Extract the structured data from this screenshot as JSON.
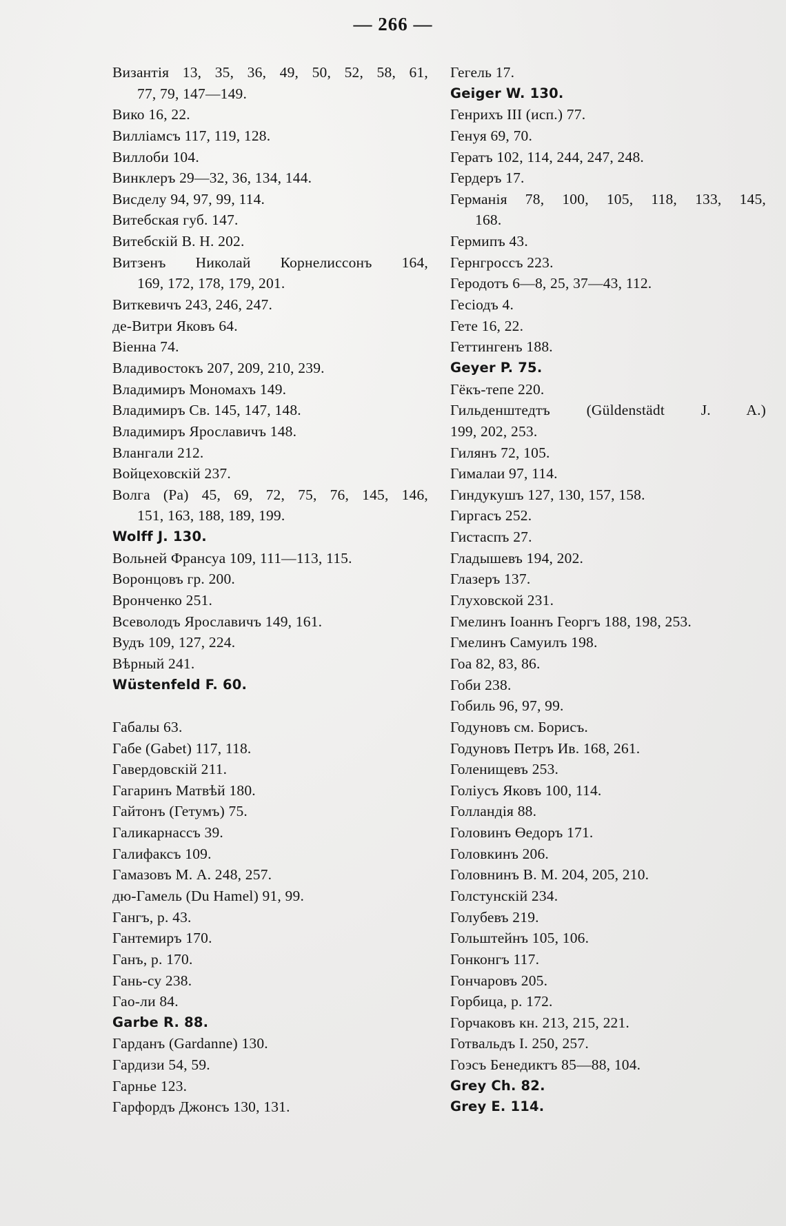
{
  "page": {
    "number": "— 266 —"
  },
  "columns": {
    "left": [
      {
        "text": "Византія 13, 35, 36, 49, 50, 52, 58, 61,",
        "cont": "77, 79, 147—149.",
        "justify": true
      },
      {
        "text": "Вико 16, 22."
      },
      {
        "text": "Вилліамсъ 117, 119, 128."
      },
      {
        "text": "Виллоби 104."
      },
      {
        "text": "Винклеръ 29—32, 36, 134, 144."
      },
      {
        "text": "Висделу 94, 97, 99, 114."
      },
      {
        "text": "Витебская губ. 147."
      },
      {
        "text": "Витебскій В. Н. 202."
      },
      {
        "text": "Витзенъ Николай Корнелиссонъ 164,",
        "cont": "169, 172, 178, 179, 201.",
        "justify": true
      },
      {
        "text": "Виткевичъ 243, 246, 247."
      },
      {
        "text": "де-Витри Яковъ 64."
      },
      {
        "text": "Віенна 74."
      },
      {
        "text": "Владивостокъ 207, 209, 210, 239."
      },
      {
        "text": "Владимиръ Мономахъ 149."
      },
      {
        "text": "Владимиръ Св. 145, 147, 148."
      },
      {
        "text": "Владимиръ Ярославичъ 148."
      },
      {
        "text": "Влангали 212."
      },
      {
        "text": "Войцеховскій 237."
      },
      {
        "text": "Волга (Ра) 45, 69, 72, 75, 76, 145, 146,",
        "cont": "151, 163, 188, 189, 199.",
        "justify": true
      },
      {
        "text": "Wolff J. 130.",
        "latin": true
      },
      {
        "text": "Вольней Франсуа 109, 111—113, 115."
      },
      {
        "text": "Воронцовъ гр. 200."
      },
      {
        "text": "Вронченко 251."
      },
      {
        "text": "Всеволодъ Ярославичъ 149, 161."
      },
      {
        "text": "Вудъ 109, 127, 224."
      },
      {
        "text": "Вѣрный 241."
      },
      {
        "text": "Wüstenfeld F. 60.",
        "latin": true
      },
      {
        "text": "Габалы 63.",
        "gap_before": true
      },
      {
        "text": "Габе (Gabet) 117, 118."
      },
      {
        "text": "Гавердовскій 211."
      },
      {
        "text": "Гагаринъ Матвѣй 180."
      },
      {
        "text": "Гайтонъ (Гетумъ) 75."
      },
      {
        "text": "Галикарнассъ 39."
      },
      {
        "text": "Галифаксъ 109."
      },
      {
        "text": "Гамазовъ М. А. 248, 257."
      },
      {
        "text": "дю-Гамель (Du Hamel) 91, 99."
      },
      {
        "text": "Гангъ, р. 43."
      },
      {
        "text": "Гантемиръ 170."
      },
      {
        "text": "Ганъ, р. 170."
      },
      {
        "text": "Гань-су 238."
      },
      {
        "text": "Гао-ли 84."
      },
      {
        "text": "Garbe R. 88.",
        "latin": true
      },
      {
        "text": "Гарданъ (Gardanne) 130."
      },
      {
        "text": "Гардизи 54, 59."
      },
      {
        "text": "Гарнье 123."
      },
      {
        "text": "Гарфордъ Джонсъ 130, 131."
      }
    ],
    "right": [
      {
        "text": "Гегель 17."
      },
      {
        "text": "Geiger W. 130.",
        "latin": true
      },
      {
        "text": "Генрихъ III (исп.) 77."
      },
      {
        "text": "Генуя 69, 70."
      },
      {
        "text": "Гератъ 102, 114, 244, 247, 248."
      },
      {
        "text": "Гердеръ 17."
      },
      {
        "text": "Германія 78, 100, 105, 118, 133, 145,",
        "cont": "168.",
        "justify": true
      },
      {
        "text": "Гермипъ 43."
      },
      {
        "text": "Гернгроссъ 223."
      },
      {
        "text": "Геродотъ 6—8, 25, 37—43, 112."
      },
      {
        "text": "Гесіодъ 4."
      },
      {
        "text": "Гете 16, 22."
      },
      {
        "text": "Геттингенъ 188."
      },
      {
        "text": "Geyer P. 75.",
        "latin": true
      },
      {
        "text": "Гёкъ-тепе 220."
      },
      {
        "text": "Гильденштедтъ (Güldenstädt J. A.)",
        "cont": "199, 202, 253.",
        "justify": true,
        "cont_noindent": true
      },
      {
        "text": "Гилянъ 72, 105."
      },
      {
        "text": "Гималаи 97, 114."
      },
      {
        "text": "Гиндукушъ 127, 130, 157, 158."
      },
      {
        "text": "Гиргасъ 252."
      },
      {
        "text": "Гистаспъ 27."
      },
      {
        "text": "Гладышевъ 194, 202."
      },
      {
        "text": "Глазеръ 137."
      },
      {
        "text": "Глуховской 231."
      },
      {
        "text": "Гмелинъ Іоаннъ Георгъ 188, 198, 253."
      },
      {
        "text": "Гмелинъ Самуилъ 198."
      },
      {
        "text": "Гоа 82, 83, 86."
      },
      {
        "text": "Гоби 238."
      },
      {
        "text": "Гобиль 96, 97, 99."
      },
      {
        "text": "Годуновъ см. Борисъ."
      },
      {
        "text": "Годуновъ Петръ Ив. 168, 261."
      },
      {
        "text": "Голенищевъ 253."
      },
      {
        "text": "Голіусъ Яковъ 100, 114."
      },
      {
        "text": "Голландія 88."
      },
      {
        "text": "Головинъ Өедоръ 171."
      },
      {
        "text": "Головкинъ 206."
      },
      {
        "text": "Головнинъ В. М. 204, 205, 210."
      },
      {
        "text": "Голстунскій 234."
      },
      {
        "text": "Голубевъ 219."
      },
      {
        "text": "Гольштейнъ 105, 106."
      },
      {
        "text": "Гонконгъ 117."
      },
      {
        "text": "Гончаровъ 205."
      },
      {
        "text": "Горбица, р. 172."
      },
      {
        "text": "Горчаковъ кн. 213, 215, 221."
      },
      {
        "text": "Готвальдъ I. 250, 257."
      },
      {
        "text": "Гоэсъ Бенедиктъ 85—88, 104."
      },
      {
        "text": "Grey Ch. 82.",
        "latin": true
      },
      {
        "text": "Grey E. 114.",
        "latin": true
      }
    ]
  }
}
